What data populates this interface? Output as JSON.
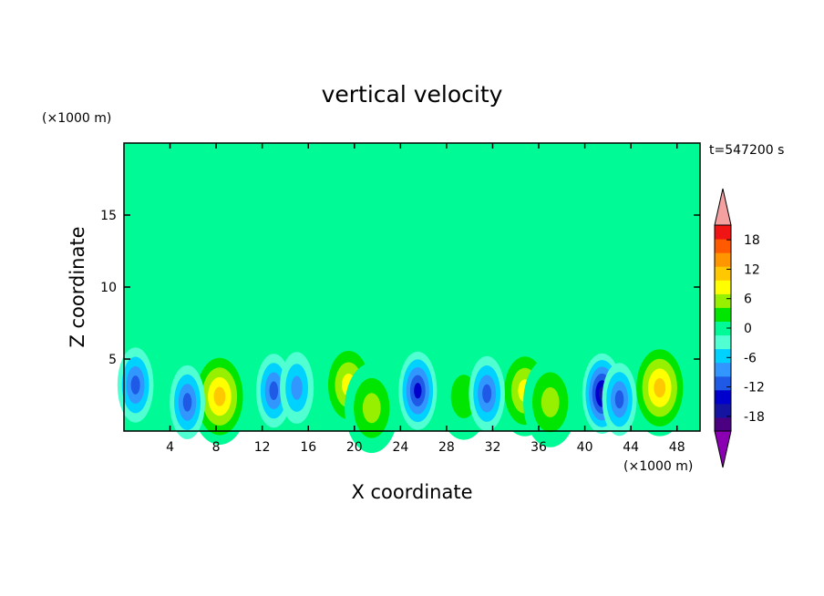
{
  "chart_data": {
    "type": "heatmap",
    "title": "vertical velocity",
    "xlabel": "X coordinate",
    "ylabel": "Z coordinate",
    "x_unit": "(×1000 m)",
    "y_unit": "(×1000 m)",
    "time_label": "t=547200 s",
    "xlim": [
      0,
      50
    ],
    "ylim": [
      0,
      20
    ],
    "x_ticks": [
      4,
      8,
      12,
      16,
      20,
      24,
      28,
      32,
      36,
      40,
      44,
      48
    ],
    "y_ticks": [
      5,
      10,
      15
    ],
    "colorbar": {
      "levels": [
        -21,
        -18,
        -15,
        -12,
        -9,
        -6,
        -3,
        0,
        3,
        6,
        9,
        12,
        15,
        18,
        21
      ],
      "colors": [
        "#4b0082",
        "#1414a0",
        "#0000cd",
        "#1e5ae6",
        "#3296ff",
        "#00d2ff",
        "#50ffd2",
        "#00fa96",
        "#00e600",
        "#96f000",
        "#ffff00",
        "#ffc800",
        "#ff9600",
        "#ff5a00",
        "#f01414"
      ],
      "extend_low_color": "#8c00b4",
      "extend_high_color": "#f5a0a0",
      "tick_labels": [
        "18",
        "12",
        "6",
        "0",
        "-6",
        "-12",
        "-18"
      ],
      "tick_values": [
        18,
        12,
        6,
        0,
        -6,
        -12,
        -18
      ]
    },
    "features": [
      {
        "x": 8.3,
        "z": 2.4,
        "w": 15
      },
      {
        "x": 19.5,
        "z": 3.2,
        "w": 10
      },
      {
        "x": 21.5,
        "z": 1.6,
        "w": 9
      },
      {
        "x": 34.8,
        "z": 2.8,
        "w": 10
      },
      {
        "x": 37.0,
        "z": 2.0,
        "w": 9
      },
      {
        "x": 46.5,
        "z": 3.0,
        "w": 15
      },
      {
        "x": 29.5,
        "z": 2.4,
        "w": 6
      },
      {
        "x": 1.0,
        "z": 3.2,
        "w": -12
      },
      {
        "x": 5.5,
        "z": 2.0,
        "w": -11
      },
      {
        "x": 13.0,
        "z": 2.8,
        "w": -11
      },
      {
        "x": 15.0,
        "z": 3.0,
        "w": -9
      },
      {
        "x": 25.5,
        "z": 2.8,
        "w": -15
      },
      {
        "x": 31.5,
        "z": 2.6,
        "w": -12
      },
      {
        "x": 41.5,
        "z": 2.6,
        "w": -17
      },
      {
        "x": 43.0,
        "z": 2.2,
        "w": -10
      }
    ]
  }
}
